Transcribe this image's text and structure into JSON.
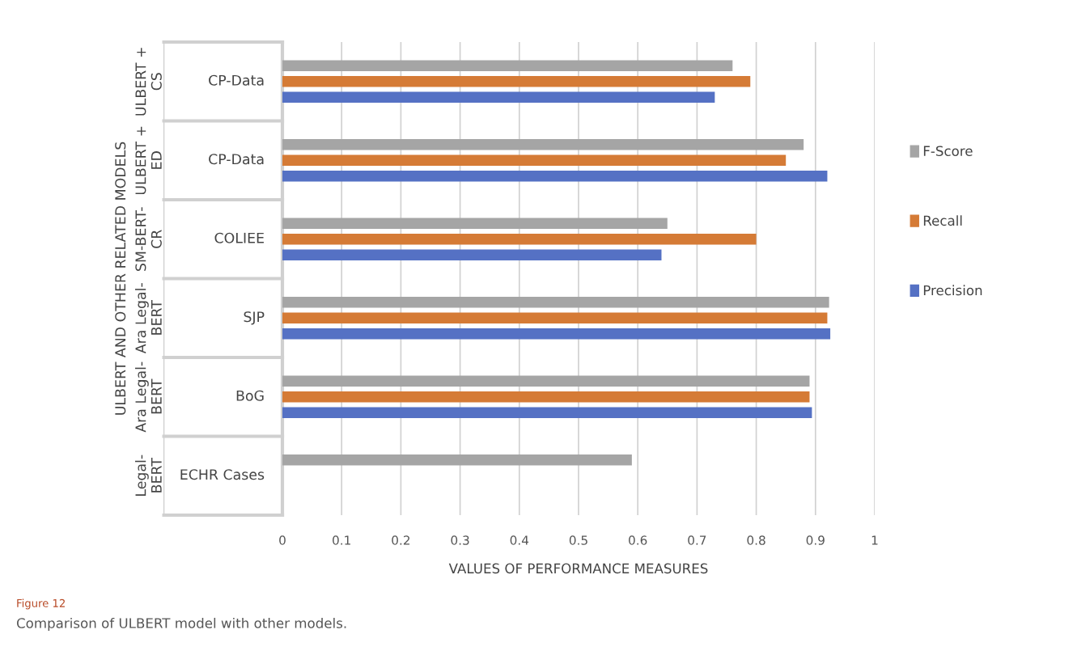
{
  "chart_data": {
    "type": "bar",
    "orientation": "horizontal",
    "xlabel": "VALUES OF PERFORMANCE MEASURES",
    "ylabel": "ULBERT AND OTHER RELATED MODELS",
    "categories": [
      "ULBERT +\nCS",
      "ULBERT +\nED",
      "SM-BERT-\nCR",
      "Ara Legal-\nBERT",
      "Ara Legal-\nBERT",
      "Legal-\nBERT"
    ],
    "series": [
      {
        "name": "F-Score",
        "color": "#a5a5a5",
        "values": [
          0.76,
          0.88,
          0.65,
          0.923,
          0.89,
          0.59
        ]
      },
      {
        "name": "Recall",
        "color": "#d57b36",
        "values": [
          0.79,
          0.85,
          0.8,
          0.92,
          0.89,
          null
        ]
      },
      {
        "name": "Precision",
        "color": "#5571c4",
        "values": [
          0.73,
          0.92,
          0.64,
          0.925,
          0.894,
          null
        ]
      }
    ],
    "xlim": [
      0,
      1
    ],
    "xticks": [
      0,
      0.1,
      0.2,
      0.3,
      0.4,
      0.5,
      0.6,
      0.7,
      0.8,
      0.9,
      1
    ],
    "grid": "x",
    "legend": "right",
    "annotations": [
      "CP-Data",
      "CP-Data",
      "COLIEE",
      "SJP",
      "BoG",
      "ECHR Cases",
      "Figure 12",
      "Comparison of ULBERT model with other models."
    ]
  }
}
